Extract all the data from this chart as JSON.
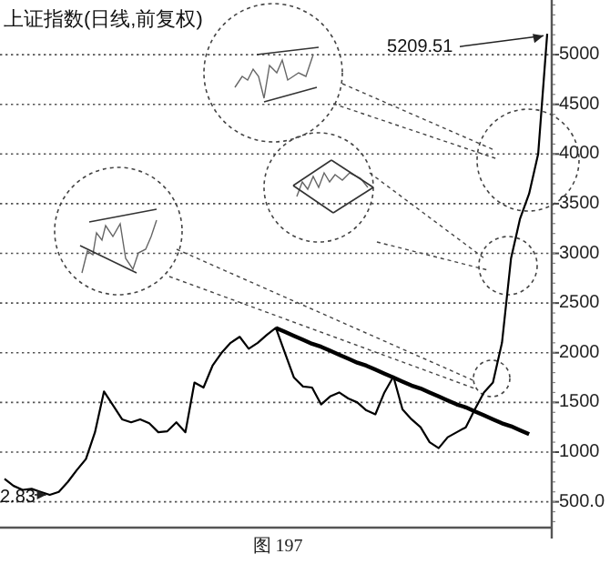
{
  "chart_data": {
    "type": "line",
    "title": "上证指数(日线,前复权)",
    "categories": [
      null,
      null,
      null,
      null,
      null,
      null,
      null,
      null,
      null,
      null,
      null,
      null,
      null,
      null,
      null,
      null,
      null,
      null,
      null,
      null,
      null,
      null,
      null,
      null,
      null,
      null,
      null,
      null,
      null,
      null,
      null,
      null,
      null,
      null,
      null,
      null,
      null,
      null,
      null,
      null,
      null,
      null,
      null,
      null,
      null,
      null,
      null,
      null,
      null,
      null,
      null,
      null,
      null,
      null,
      null,
      null,
      null,
      null,
      null,
      null,
      null
    ],
    "ylim": [
      240,
      5550
    ],
    "yticks": [
      {
        "value": 500,
        "label": "500.0"
      },
      1000,
      1500,
      2000,
      2500,
      3000,
      3500,
      4000,
      4500,
      5000
    ],
    "tick_labels": "y",
    "grid": "y",
    "marker": "none",
    "line_style": "solid",
    "series": [
      {
        "color": "#000000",
        "values": [
          730,
          660,
          620,
          630,
          600,
          570,
          600,
          700,
          820,
          930,
          1200,
          1610,
          1470,
          1330,
          1300,
          1330,
          1290,
          1200,
          1210,
          1300,
          1200,
          1700,
          1650,
          1870,
          2000,
          2100,
          2160,
          2040,
          2100,
          2180,
          2250,
          2000,
          1750,
          1660,
          1650,
          1480,
          1560,
          1600,
          1540,
          1500,
          1420,
          1380,
          1600,
          1760,
          1430,
          1330,
          1250,
          1100,
          1040,
          1150,
          1200,
          1250,
          1430,
          1600,
          1700,
          2100,
          2950,
          3350,
          3600,
          4000,
          5209.51
        ]
      },
      {
        "type": "line",
        "color": "#000000",
        "values": [
          null,
          null,
          null,
          null,
          null,
          null,
          null,
          null,
          null,
          null,
          null,
          null,
          null,
          null,
          null,
          null,
          null,
          null,
          null,
          null,
          null,
          null,
          null,
          null,
          null,
          null,
          null,
          null,
          null,
          null,
          2250,
          2210,
          2170,
          2130,
          2090,
          2060,
          2020,
          1980,
          1940,
          1900,
          1870,
          1830,
          1790,
          1750,
          1710,
          1670,
          1640,
          1600,
          1560,
          1520,
          1480,
          1450,
          1410,
          1370,
          1330,
          1290,
          1260,
          1220,
          1180,
          null,
          null
        ]
      }
    ],
    "annotations": [
      "5209.51",
      "2.83",
      "图 197"
    ]
  }
}
